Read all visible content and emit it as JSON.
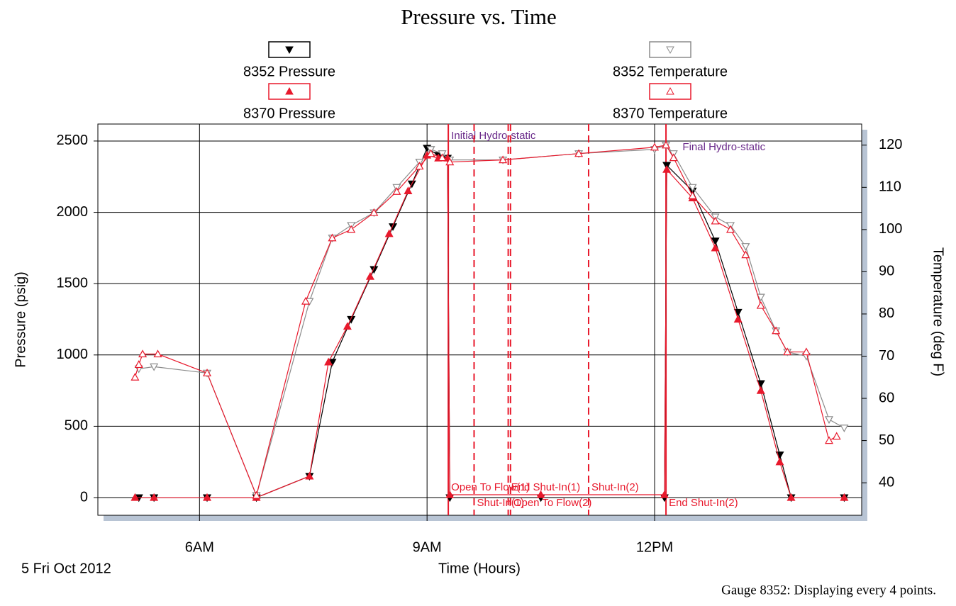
{
  "chart_data": {
    "type": "line",
    "title": "Pressure vs. Time",
    "x_label": "Time (Hours)",
    "y_label": "Pressure (psig)",
    "y2_label": "Temperature (deg F)",
    "date_label": "5 Fri Oct 2012",
    "footnote": "Gauge 8352: Displaying every 4 points.",
    "xlim": [
      4.66,
      14.73
    ],
    "xticks": [
      {
        "value": 6,
        "label": "6AM"
      },
      {
        "value": 9,
        "label": "9AM"
      },
      {
        "value": 12,
        "label": "12PM"
      }
    ],
    "ylim": [
      -124,
      2619
    ],
    "yticks": [
      0,
      500,
      1000,
      1500,
      2000,
      2500
    ],
    "y2lim": [
      32.3,
      125.0
    ],
    "y2ticks": [
      40,
      50,
      60,
      70,
      80,
      90,
      100,
      110,
      120
    ],
    "grid": true,
    "series": [
      {
        "name": "8352 Pressure",
        "color": "#000000",
        "marker": "triangle-down",
        "filled": true,
        "x": [
          5.2,
          5.4,
          6.1,
          6.75,
          7.45,
          7.75,
          8.0,
          8.3,
          8.55,
          8.8,
          9.0,
          9.15,
          9.27,
          9.3,
          10.5,
          12.13,
          12.16,
          12.5,
          12.8,
          13.1,
          13.4,
          13.65,
          13.8,
          14.5
        ],
        "values": [
          0,
          0,
          0,
          0,
          150,
          950,
          1250,
          1600,
          1900,
          2200,
          2450,
          2400,
          2380,
          0,
          0,
          0,
          2330,
          2150,
          1800,
          1300,
          800,
          300,
          0,
          0
        ]
      },
      {
        "name": "8352 Temperature",
        "color": "#8c8c8c",
        "marker": "triangle-down",
        "filled": false,
        "axis": "y2",
        "x": [
          5.2,
          5.4,
          6.1,
          6.75,
          7.45,
          7.75,
          8.0,
          8.3,
          8.6,
          8.9,
          9.05,
          9.2,
          9.3,
          10.0,
          11.0,
          12.0,
          12.15,
          12.25,
          12.5,
          12.8,
          13.0,
          13.2,
          13.4,
          13.6,
          13.75,
          14.0,
          14.3,
          14.5
        ],
        "values": [
          67,
          67.5,
          66,
          37,
          83,
          98,
          101,
          104,
          110,
          116,
          119,
          118,
          116.5,
          116.5,
          118,
          119,
          120,
          118,
          110,
          103,
          101,
          96,
          84,
          76,
          71,
          70,
          55,
          53
        ]
      },
      {
        "name": "8370 Pressure",
        "color": "#e8192c",
        "marker": "triangle-up",
        "filled": true,
        "x": [
          5.15,
          5.4,
          6.1,
          6.75,
          7.45,
          7.7,
          7.95,
          8.25,
          8.5,
          8.75,
          9.0,
          9.15,
          9.27,
          9.3,
          10.5,
          12.13,
          12.16,
          12.5,
          12.8,
          13.1,
          13.4,
          13.65,
          13.8,
          14.5
        ],
        "values": [
          0,
          0,
          0,
          0,
          150,
          950,
          1200,
          1550,
          1850,
          2150,
          2400,
          2380,
          2380,
          20,
          20,
          20,
          2300,
          2100,
          1750,
          1250,
          750,
          250,
          0,
          0
        ]
      },
      {
        "name": "8370 Temperature",
        "color": "#e8192c",
        "marker": "triangle-up",
        "filled": false,
        "axis": "y2",
        "x": [
          5.15,
          5.2,
          5.25,
          5.45,
          6.1,
          6.75,
          7.4,
          7.75,
          8.0,
          8.3,
          8.6,
          8.9,
          9.05,
          9.2,
          9.3,
          10.0,
          11.0,
          12.0,
          12.15,
          12.25,
          12.5,
          12.8,
          13.0,
          13.2,
          13.4,
          13.6,
          13.75,
          14.0,
          14.3,
          14.4
        ],
        "values": [
          65,
          68,
          70.5,
          70.5,
          66,
          37,
          83,
          98,
          100,
          104,
          109,
          115,
          118,
          117,
          116,
          116.5,
          118,
          119.5,
          120,
          117,
          108,
          102,
          100,
          94,
          82,
          76,
          71,
          71,
          50,
          51
        ]
      }
    ],
    "annotations": [
      {
        "text": "Initial Hydro-static",
        "x": 9.15
      },
      {
        "text": "Open To Flow(1)",
        "x": 9.28,
        "line": "solid"
      },
      {
        "text": "Shut-In(1)",
        "x": 9.62,
        "line": "dashed"
      },
      {
        "text": "End Shut-In(1)",
        "x": 10.07,
        "line": "dashed"
      },
      {
        "text": "Open To Flow(2)",
        "x": 10.1,
        "line": "dashed"
      },
      {
        "text": "Shut-In(2)",
        "x": 11.13,
        "line": "dashed"
      },
      {
        "text": "End Shut-In(2)",
        "x": 12.15,
        "line": "solid"
      },
      {
        "text": "Final Hydro-static",
        "x": 12.2
      }
    ]
  }
}
